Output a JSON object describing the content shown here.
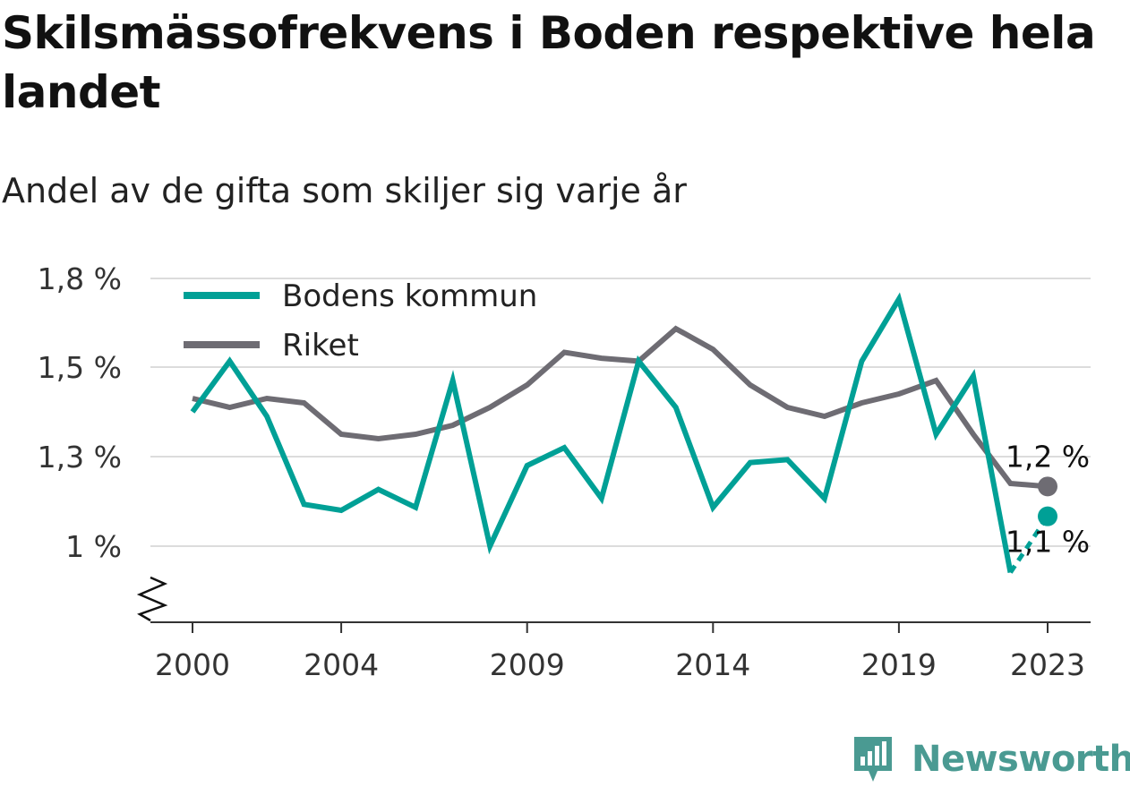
{
  "title": "Skilsmässofrekvens i Boden respektive hela landet",
  "subtitle": "Andel av de gifta som skiljer sig varje år",
  "brand": {
    "name": "Newsworthy",
    "color": "#4a9a92",
    "icon": "newsworthy-logo-icon"
  },
  "chart_data": {
    "type": "line",
    "x": [
      2000,
      2001,
      2002,
      2003,
      2004,
      2005,
      2006,
      2007,
      2008,
      2009,
      2010,
      2011,
      2012,
      2013,
      2014,
      2015,
      2016,
      2017,
      2018,
      2019,
      2020,
      2021,
      2022,
      2023
    ],
    "x_ticks": [
      2000,
      2004,
      2009,
      2014,
      2019,
      2023
    ],
    "x_tick_labels": [
      "2000",
      "2004",
      "2009",
      "2014",
      "2019",
      "2023"
    ],
    "y_ticks": [
      1.0,
      1.3,
      1.5,
      1.8
    ],
    "y_tick_labels": [
      "1 %",
      "1,3 %",
      "1,5 %",
      "1,8 %"
    ],
    "ylim": [
      0.74,
      1.8
    ],
    "y_axis_break": true,
    "grid": true,
    "legend_position": "top-left",
    "series": [
      {
        "name": "Bodens kommun",
        "color": "#00a096",
        "values": [
          1.4,
          1.52,
          1.39,
          1.14,
          1.12,
          1.19,
          1.13,
          1.47,
          1.0,
          1.27,
          1.32,
          1.16,
          1.52,
          1.41,
          1.13,
          1.28,
          1.29,
          1.16,
          1.52,
          1.73,
          1.35,
          1.48,
          0.91,
          1.1
        ],
        "last_segment_dashed": true,
        "end_label": "1,1 %"
      },
      {
        "name": "Riket",
        "color": "#6e6c73",
        "values": [
          1.43,
          1.41,
          1.43,
          1.42,
          1.35,
          1.34,
          1.35,
          1.37,
          1.41,
          1.46,
          1.55,
          1.53,
          1.52,
          1.63,
          1.56,
          1.46,
          1.41,
          1.39,
          1.42,
          1.44,
          1.47,
          1.35,
          1.21,
          1.2
        ],
        "end_label": "1,2 %"
      }
    ]
  }
}
